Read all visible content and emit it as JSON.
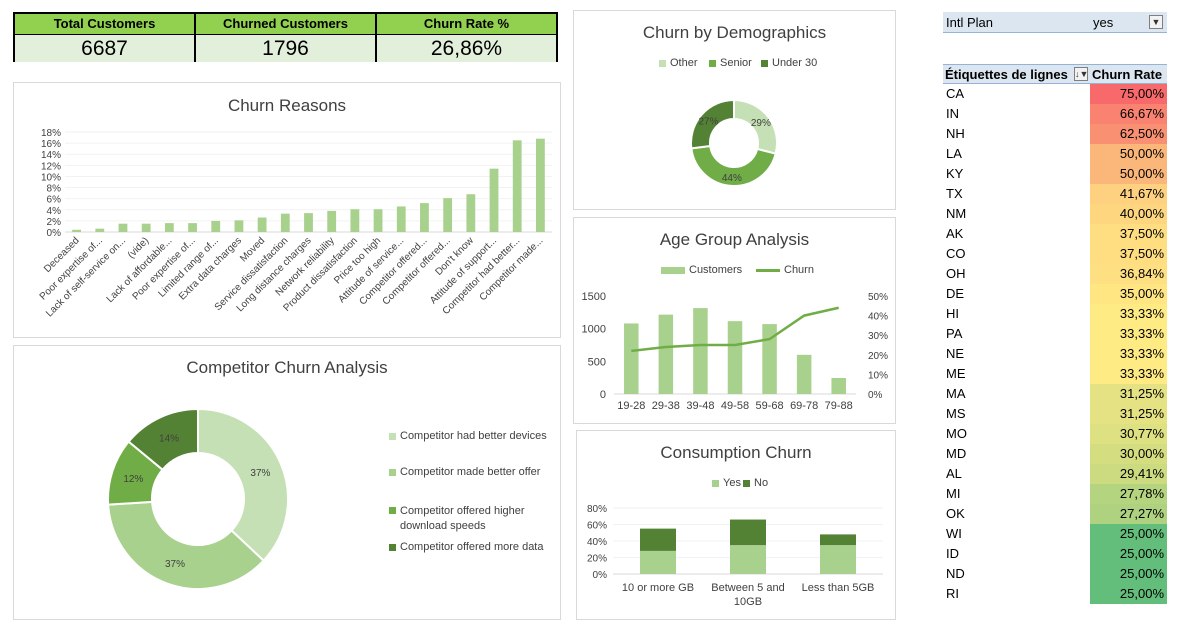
{
  "kpis": [
    {
      "label": "Total Customers",
      "value": "6687"
    },
    {
      "label": "Churned Customers",
      "value": "1796"
    },
    {
      "label": "Churn Rate %",
      "value": "26,86%"
    }
  ],
  "colors": {
    "light_green": "#a9d18e",
    "mid_green": "#70ad47",
    "dark_green": "#548235",
    "pale_green": "#c5e0b4"
  },
  "chart_data": [
    {
      "type": "bar",
      "title": "Churn Reasons",
      "ylim": [
        0,
        18
      ],
      "yticks": [
        "0%",
        "2%",
        "4%",
        "6%",
        "8%",
        "10%",
        "12%",
        "14%",
        "16%",
        "18%"
      ],
      "categories": [
        "Deceased",
        "Poor expertise of...",
        "Lack of self-service on...",
        "(vide)",
        "Lack of affordable...",
        "Poor expertise of...",
        "Limited range of...",
        "Extra data charges",
        "Moved",
        "Service dissatisfaction",
        "Long distance charges",
        "Network reliability",
        "Product dissatisfaction",
        "Price too high",
        "Attitude of service...",
        "Competitor offered...",
        "Competitor offered...",
        "Don't know",
        "Attitude of support...",
        "Competitor had better...",
        "Competitor made..."
      ],
      "values": [
        0.4,
        0.6,
        1.5,
        1.5,
        1.6,
        1.6,
        2.0,
        2.1,
        2.6,
        3.3,
        3.4,
        3.8,
        4.1,
        4.1,
        4.6,
        5.2,
        6.1,
        6.8,
        11.4,
        16.5,
        16.8
      ]
    },
    {
      "type": "pie",
      "title": "Competitor Churn Analysis",
      "categories": [
        "Competitor had better devices",
        "Competitor made better offer",
        "Competitor offered higher download speeds",
        "Competitor offered more data"
      ],
      "values": [
        37,
        37,
        12,
        14
      ],
      "labels": [
        "37%",
        "37%",
        "12%",
        "14%"
      ]
    },
    {
      "type": "pie",
      "title": "Churn by Demographics",
      "categories": [
        "Other",
        "Senior",
        "Under 30"
      ],
      "values": [
        29,
        44,
        27
      ],
      "labels": [
        "29%",
        "44%",
        "27%"
      ]
    },
    {
      "type": "bar",
      "title": "Age Group Analysis",
      "categories": [
        "19-28",
        "29-38",
        "39-48",
        "49-58",
        "59-68",
        "69-78",
        "79-88"
      ],
      "series": [
        {
          "name": "Customers",
          "values": [
            1080,
            1215,
            1315,
            1115,
            1070,
            600,
            245
          ]
        },
        {
          "name": "Churn",
          "values": [
            22,
            24,
            25,
            25,
            28,
            40,
            44
          ]
        }
      ],
      "yticks_left": [
        "0",
        "500",
        "1000",
        "1500"
      ],
      "yticks_right": [
        "0%",
        "10%",
        "20%",
        "30%",
        "40%",
        "50%"
      ],
      "ylim_left": [
        0,
        1500
      ],
      "ylim_right": [
        0,
        50
      ]
    },
    {
      "type": "bar",
      "title": "Consumption Churn",
      "categories": [
        "10 or more GB",
        "Between 5 and 10GB",
        "Less than 5GB"
      ],
      "series": [
        {
          "name": "Yes",
          "values": [
            28,
            35,
            35
          ]
        },
        {
          "name": "No",
          "values": [
            27,
            31,
            13
          ]
        }
      ],
      "yticks": [
        "0%",
        "20%",
        "40%",
        "60%",
        "80%"
      ],
      "ylim": [
        0,
        80
      ]
    }
  ],
  "filter": {
    "label": "Intl Plan",
    "value": "yes"
  },
  "pivot": {
    "header_label": "Étiquettes de lignes",
    "header_value": "Churn Rate",
    "rows": [
      {
        "state": "CA",
        "rate": "75,00%",
        "color": "#f8696b"
      },
      {
        "state": "IN",
        "rate": "66,67%",
        "color": "#f98370"
      },
      {
        "state": "NH",
        "rate": "62,50%",
        "color": "#f99072"
      },
      {
        "state": "LA",
        "rate": "50,00%",
        "color": "#fbb77a"
      },
      {
        "state": "KY",
        "rate": "50,00%",
        "color": "#fbb77a"
      },
      {
        "state": "TX",
        "rate": "41,67%",
        "color": "#fdd17f"
      },
      {
        "state": "NM",
        "rate": "40,00%",
        "color": "#fed680"
      },
      {
        "state": "AK",
        "rate": "37,50%",
        "color": "#fede81"
      },
      {
        "state": "CO",
        "rate": "37,50%",
        "color": "#fede81"
      },
      {
        "state": "OH",
        "rate": "36,84%",
        "color": "#fee082"
      },
      {
        "state": "DE",
        "rate": "35,00%",
        "color": "#ffe683"
      },
      {
        "state": "HI",
        "rate": "33,33%",
        "color": "#ffeb84"
      },
      {
        "state": "PA",
        "rate": "33,33%",
        "color": "#ffeb84"
      },
      {
        "state": "NE",
        "rate": "33,33%",
        "color": "#ffeb84"
      },
      {
        "state": "ME",
        "rate": "33,33%",
        "color": "#ffeb84"
      },
      {
        "state": "MA",
        "rate": "31,25%",
        "color": "#e4e283"
      },
      {
        "state": "MS",
        "rate": "31,25%",
        "color": "#e4e283"
      },
      {
        "state": "MO",
        "rate": "30,77%",
        "color": "#dee182"
      },
      {
        "state": "MD",
        "rate": "30,00%",
        "color": "#d4de81"
      },
      {
        "state": "AL",
        "rate": "29,41%",
        "color": "#ccdb80"
      },
      {
        "state": "MI",
        "rate": "27,78%",
        "color": "#b5d47f"
      },
      {
        "state": "OK",
        "rate": "27,27%",
        "color": "#aed27f"
      },
      {
        "state": "WI",
        "rate": "25,00%",
        "color": "#63be7b"
      },
      {
        "state": "ID",
        "rate": "25,00%",
        "color": "#63be7b"
      },
      {
        "state": "ND",
        "rate": "25,00%",
        "color": "#63be7b"
      },
      {
        "state": "RI",
        "rate": "25,00%",
        "color": "#63be7b"
      }
    ]
  }
}
